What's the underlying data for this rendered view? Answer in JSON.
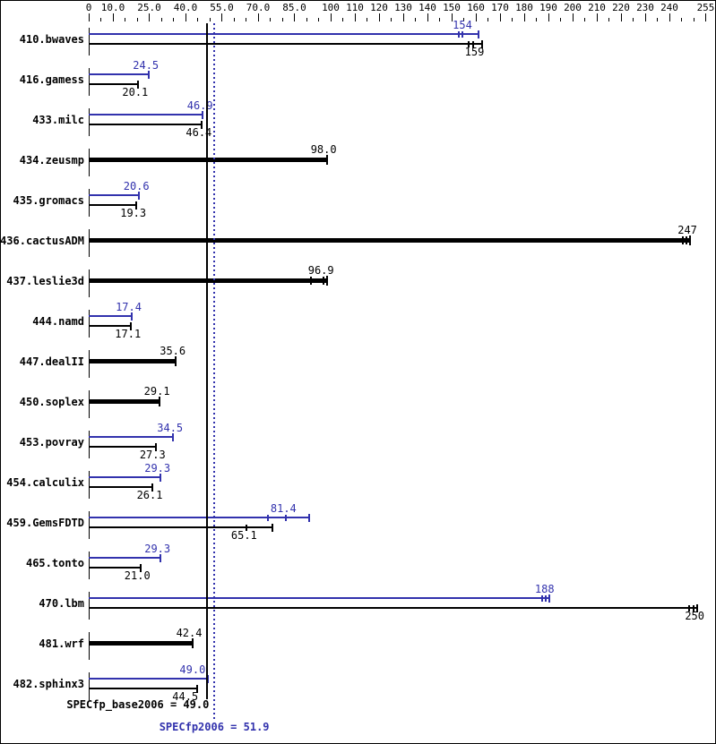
{
  "colors": {
    "peak": "#3232AD",
    "base": "#000000",
    "background": "#FFFFFF",
    "border": "#000000"
  },
  "chart_data": {
    "type": "bar",
    "orientation": "horizontal",
    "title": "",
    "xlabel": "",
    "ylabel": "",
    "axis": {
      "range": [
        0,
        255
      ],
      "minor_tick_step": 5,
      "major_ticks": [
        {
          "v": 0,
          "label": "0"
        },
        {
          "v": 10,
          "label": "10.0"
        },
        {
          "v": 25,
          "label": "25.0"
        },
        {
          "v": 40,
          "label": "40.0"
        },
        {
          "v": 55,
          "label": "55.0"
        },
        {
          "v": 70,
          "label": "70.0"
        },
        {
          "v": 85,
          "label": "85.0"
        },
        {
          "v": 100,
          "label": "100"
        },
        {
          "v": 110,
          "label": "110"
        },
        {
          "v": 120,
          "label": "120"
        },
        {
          "v": 130,
          "label": "130"
        },
        {
          "v": 140,
          "label": "140"
        },
        {
          "v": 150,
          "label": "150"
        },
        {
          "v": 160,
          "label": "160"
        },
        {
          "v": 170,
          "label": "170"
        },
        {
          "v": 180,
          "label": "180"
        },
        {
          "v": 190,
          "label": "190"
        },
        {
          "v": 200,
          "label": "200"
        },
        {
          "v": 210,
          "label": "210"
        },
        {
          "v": 220,
          "label": "220"
        },
        {
          "v": 230,
          "label": "230"
        },
        {
          "v": 240,
          "label": "240"
        },
        {
          "v": 255,
          "label": "255"
        }
      ]
    },
    "legend": {
      "peak_series": "SPECfp2006 (peak, blue)",
      "base_series": "SPECfp_base2006 (base, black)"
    },
    "benchmarks": [
      {
        "name": "410.bwaves",
        "peak": {
          "value": 154,
          "label": "154",
          "marks": [
            153,
            154.5
          ],
          "end": 161
        },
        "base": {
          "value": 159,
          "label": "159",
          "marks": [
            157,
            159
          ],
          "end": 162.5
        }
      },
      {
        "name": "416.gamess",
        "peak": {
          "value": 24.5,
          "label": "24.5",
          "marks": [],
          "end": 24.8
        },
        "base": {
          "value": 20.1,
          "label": "20.1",
          "marks": [],
          "end": 20.4
        }
      },
      {
        "name": "433.milc",
        "peak": {
          "value": 46.9,
          "label": "46.9",
          "marks": [],
          "end": 47.2
        },
        "base": {
          "value": 46.4,
          "label": "46.4",
          "marks": [],
          "end": 46.7
        }
      },
      {
        "name": "434.zeusmp",
        "peak": null,
        "base": {
          "value": 98.0,
          "label": "98.0",
          "marks": [],
          "end": 98.4,
          "thick": true
        }
      },
      {
        "name": "435.gromacs",
        "peak": {
          "value": 20.6,
          "label": "20.6",
          "marks": [],
          "end": 20.9
        },
        "base": {
          "value": 19.3,
          "label": "19.3",
          "marks": [],
          "end": 19.6
        }
      },
      {
        "name": "436.cactusADM",
        "peak": null,
        "base": {
          "value": 247,
          "label": "247",
          "marks": [
            245.5,
            247
          ],
          "end": 248.5,
          "thick": true
        }
      },
      {
        "name": "437.leslie3d",
        "peak": null,
        "base": {
          "value": 96.9,
          "label": "96.9",
          "marks": [
            91.9,
            96.9
          ],
          "end": 98.5,
          "thick": true
        }
      },
      {
        "name": "444.namd",
        "peak": {
          "value": 17.4,
          "label": "17.4",
          "marks": [],
          "end": 17.7
        },
        "base": {
          "value": 17.1,
          "label": "17.1",
          "marks": [],
          "end": 17.4
        }
      },
      {
        "name": "447.dealII",
        "peak": null,
        "base": {
          "value": 35.6,
          "label": "35.6",
          "marks": [],
          "end": 35.9,
          "thick": true
        }
      },
      {
        "name": "450.soplex",
        "peak": null,
        "base": {
          "value": 29.1,
          "label": "29.1",
          "marks": [],
          "end": 29.4,
          "thick": true
        }
      },
      {
        "name": "453.povray",
        "peak": {
          "value": 34.5,
          "label": "34.5",
          "marks": [],
          "end": 34.8
        },
        "base": {
          "value": 27.3,
          "label": "27.3",
          "marks": [],
          "end": 27.6
        }
      },
      {
        "name": "454.calculix",
        "peak": {
          "value": 29.3,
          "label": "29.3",
          "marks": [],
          "end": 29.6
        },
        "base": {
          "value": 26.1,
          "label": "26.1",
          "marks": [],
          "end": 26.4
        }
      },
      {
        "name": "459.GemsFDTD",
        "peak": {
          "value": 81.4,
          "label": "81.4",
          "marks": [
            74,
            81.4
          ],
          "end": 91
        },
        "base": {
          "value": 65.1,
          "label": "65.1",
          "marks": [
            65.1
          ],
          "end": 76
        }
      },
      {
        "name": "465.tonto",
        "peak": {
          "value": 29.3,
          "label": "29.3",
          "marks": [],
          "end": 29.6
        },
        "base": {
          "value": 21.0,
          "label": "21.0",
          "marks": [],
          "end": 21.3
        }
      },
      {
        "name": "470.lbm",
        "peak": {
          "value": 188,
          "label": "188",
          "marks": [
            187.3,
            188.8
          ],
          "end": 190.5
        },
        "base": {
          "value": 250,
          "label": "250",
          "marks": [
            248.3,
            250
          ],
          "end": 251.5
        }
      },
      {
        "name": "481.wrf",
        "peak": null,
        "base": {
          "value": 42.4,
          "label": "42.4",
          "marks": [],
          "end": 42.8,
          "thick": true
        }
      },
      {
        "name": "482.sphinx3",
        "peak": {
          "value": 49.0,
          "label": "49.0",
          "marks": [],
          "end": 49.2,
          "label_dx": -2
        },
        "base": {
          "value": 44.5,
          "label": "44.5",
          "marks": [],
          "end": 44.8,
          "label_dx": 2
        }
      }
    ],
    "reference_lines": [
      {
        "name": "SPECfp_base2006",
        "value": 49.0,
        "label": "SPECfp_base2006 = 49.0",
        "color": "#000000",
        "style": "solid"
      },
      {
        "name": "SPECfp2006",
        "value": 51.9,
        "label": "SPECfp2006 = 51.9",
        "color": "#3232AD",
        "style": "dotted"
      }
    ]
  }
}
